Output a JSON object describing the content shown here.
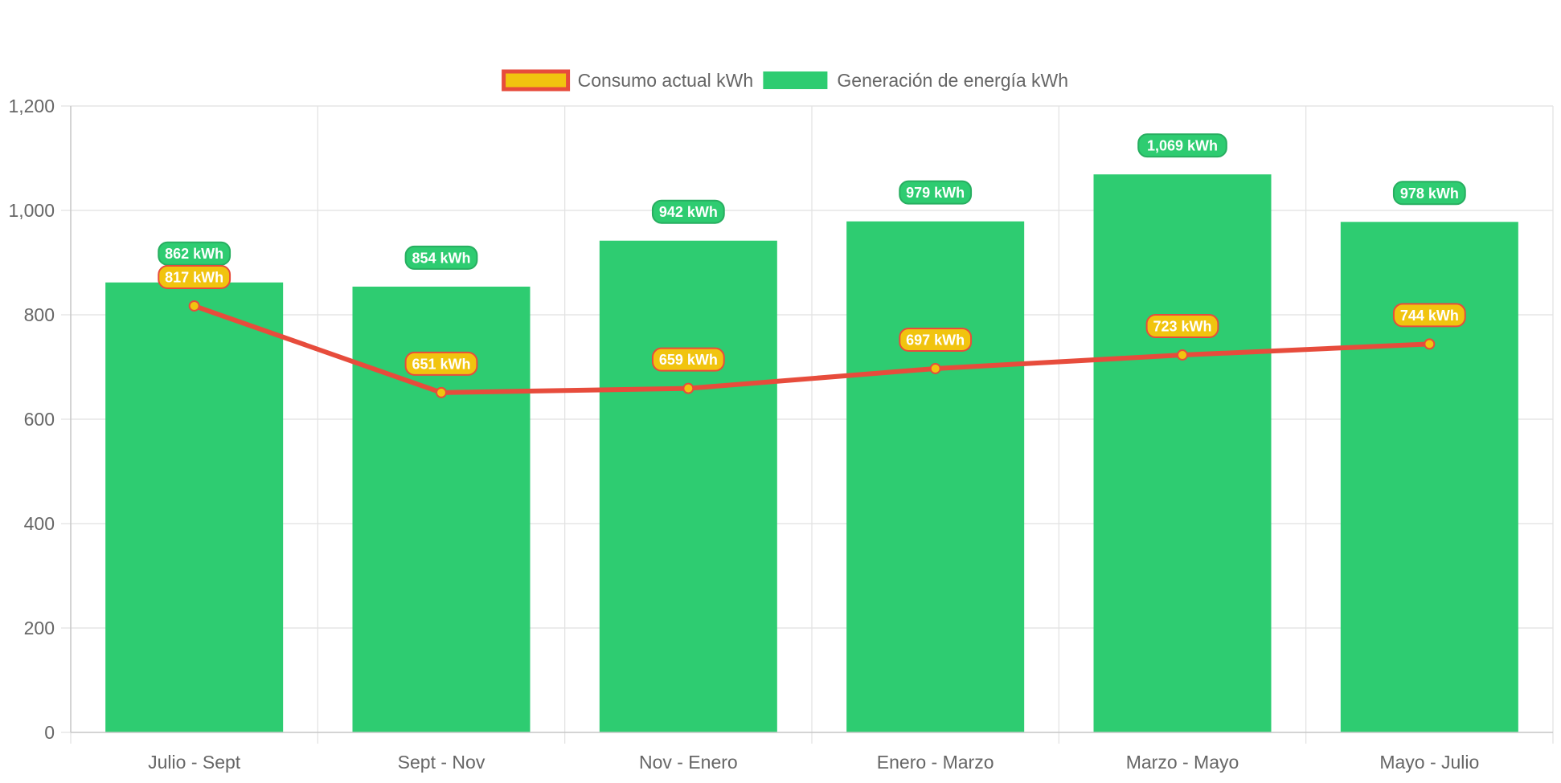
{
  "chart_data": {
    "type": "bar",
    "categories": [
      "Julio - Sept",
      "Sept - Nov",
      "Nov - Enero",
      "Enero - Marzo",
      "Marzo - Mayo",
      "Mayo - Julio"
    ],
    "series": [
      {
        "name": "Consumo actual kWh",
        "type": "line",
        "values": [
          817,
          651,
          659,
          697,
          723,
          744
        ],
        "line_color": "#e74c3c",
        "fill_color": "#f1c40f",
        "label_suffix": " kWh"
      },
      {
        "name": "Generación de energía kWh",
        "type": "bar",
        "values": [
          862,
          854,
          942,
          979,
          1069,
          978
        ],
        "fill_color": "#2ecc71",
        "label_suffix": " kWh"
      }
    ],
    "ylim": [
      0,
      1200
    ],
    "yticks": [
      0,
      200,
      400,
      600,
      800,
      1000,
      1200
    ],
    "grid": true,
    "legend": "top",
    "title": "",
    "xlabel": "",
    "ylabel": ""
  }
}
